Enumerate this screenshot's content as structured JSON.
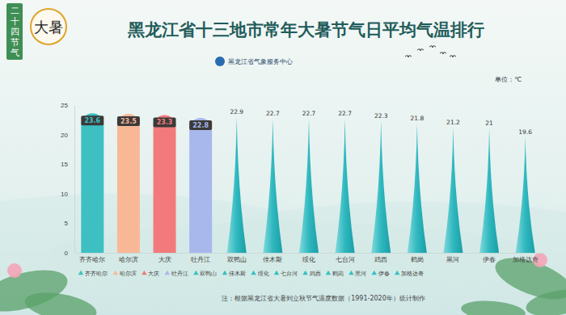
{
  "chart_data": {
    "type": "bar",
    "title": "黑龙江省十三地市常年大暑节气日平均气温排行",
    "badge": "二十四节气",
    "badge_title": "大暑",
    "source": "黑龙江省气象服务中心",
    "unit": "单位：℃",
    "note": "注：根据黑龙江省大暑到立秋节气温度数据（1991-2020年）统计制作",
    "categories": [
      "齐齐哈尔",
      "哈尔滨",
      "大庆",
      "牡丹江",
      "双鸭山",
      "佳木斯",
      "绥化",
      "七台河",
      "鸡西",
      "鹤岗",
      "黑河",
      "伊春",
      "加格达奇"
    ],
    "values": [
      23.6,
      23.5,
      23.3,
      22.8,
      22.9,
      22.7,
      22.7,
      22.7,
      22.3,
      21.8,
      21.2,
      21,
      19.6
    ],
    "colors": [
      "#3ec0c2",
      "#f8b896",
      "#f37a7c",
      "#a8b7ec",
      "#36c0c6",
      "#36c0c6",
      "#36c0c6",
      "#36c0c6",
      "#36c0c6",
      "#36c0c6",
      "#36c0c6",
      "#36c0c6",
      "#36c0c6"
    ],
    "ylim": [
      0,
      25
    ],
    "yticks": [
      0,
      5,
      10,
      15,
      20,
      25
    ],
    "grid": false,
    "data_labels": true,
    "legend": "bottom"
  }
}
